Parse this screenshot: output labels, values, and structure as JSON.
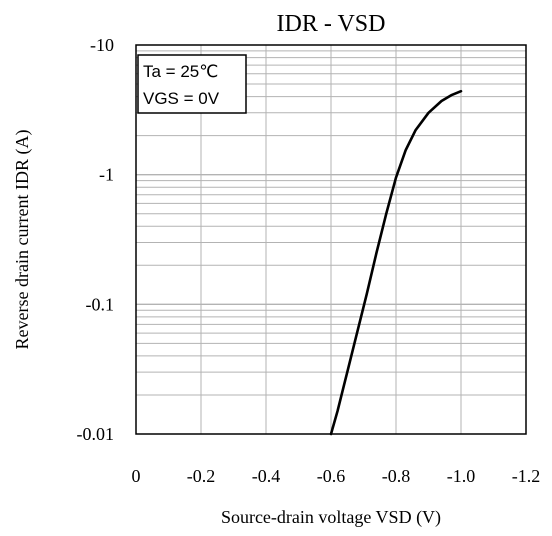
{
  "chart_data": {
    "type": "line",
    "title": "IDR - VSD",
    "xlabel": "Source-drain voltage VSD (V)",
    "ylabel": "Reverse drain current IDR (A)",
    "x_scale": "linear",
    "y_scale": "log",
    "xlim": [
      0,
      -1.2
    ],
    "ylim": [
      -0.01,
      -10
    ],
    "x_ticks": [
      0,
      -0.2,
      -0.4,
      -0.6,
      -0.8,
      -1.0,
      -1.2
    ],
    "x_tick_labels": [
      "0",
      "-0.2",
      "-0.4",
      "-0.6",
      "-0.8",
      "-1.0",
      "-1.2"
    ],
    "y_ticks": [
      -10,
      -1,
      -0.1,
      -0.01
    ],
    "y_tick_labels": [
      "-10",
      "-1",
      "-0.1",
      "-0.01"
    ],
    "grid": true,
    "legend_box": {
      "position": "top-left",
      "lines": [
        "Ta = 25℃",
        "VGS = 0V"
      ]
    },
    "series": [
      {
        "x": [
          -0.6,
          -0.62,
          -0.65,
          -0.68,
          -0.71,
          -0.74,
          -0.77,
          -0.8,
          -0.83,
          -0.86,
          -0.9,
          -0.94,
          -0.97,
          -1.0
        ],
        "y": [
          -0.01,
          -0.015,
          -0.03,
          -0.06,
          -0.12,
          -0.25,
          -0.5,
          -0.95,
          -1.55,
          -2.2,
          -3.0,
          -3.7,
          -4.1,
          -4.4
        ]
      }
    ],
    "colors": {
      "line": "#000000",
      "grid": "#b3b3b3",
      "frame": "#000000"
    }
  }
}
